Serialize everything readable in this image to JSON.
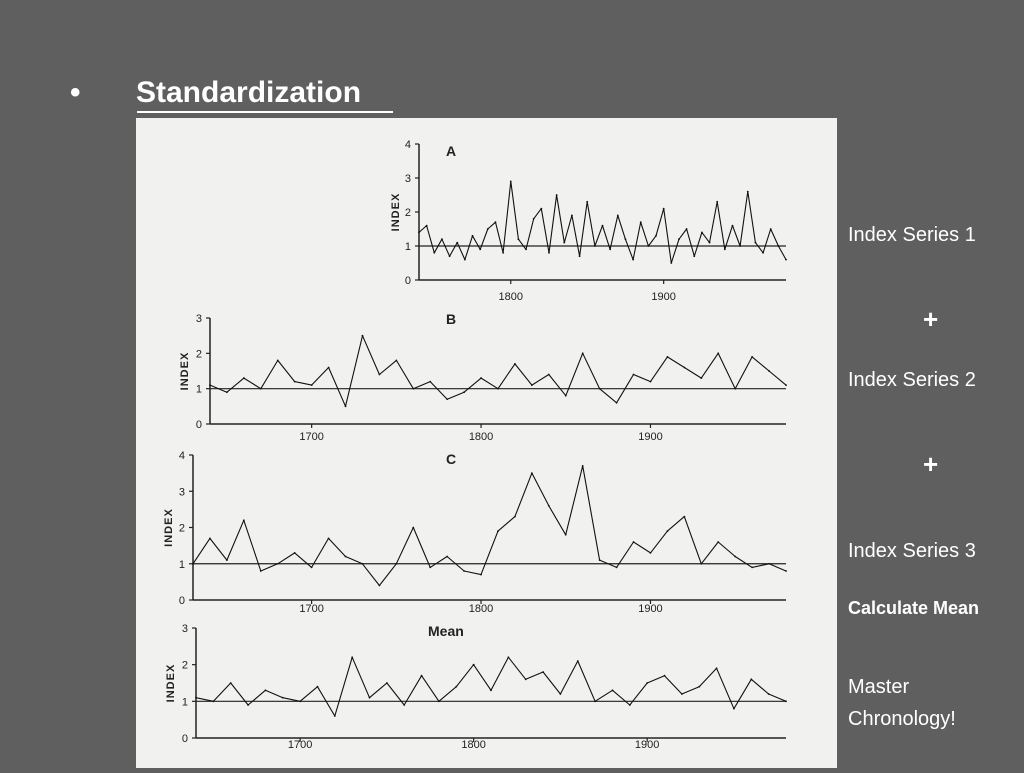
{
  "slide": {
    "bullet": "•",
    "title": "Standardization"
  },
  "side": {
    "series1": "Index Series 1",
    "plus1": "+",
    "series2": "Index Series 2",
    "plus2": "+",
    "series3": "Index Series 3",
    "calculate": "Calculate Mean",
    "master_line1": "Master",
    "master_line2": "Chronology!"
  },
  "chart_data": [
    {
      "type": "line",
      "title": "A",
      "ylabel": "INDEX",
      "xlim": [
        1740,
        1980
      ],
      "ylim": [
        0,
        4
      ],
      "yticks": [
        0,
        1,
        2,
        3,
        4
      ],
      "xticks": [
        1800,
        1900
      ],
      "reference_line": 1,
      "x": [
        1740,
        1745,
        1750,
        1755,
        1760,
        1765,
        1770,
        1775,
        1780,
        1785,
        1790,
        1795,
        1800,
        1805,
        1810,
        1815,
        1820,
        1825,
        1830,
        1835,
        1840,
        1845,
        1850,
        1855,
        1860,
        1865,
        1870,
        1875,
        1880,
        1885,
        1890,
        1895,
        1900,
        1905,
        1910,
        1915,
        1920,
        1925,
        1930,
        1935,
        1940,
        1945,
        1950,
        1955,
        1960,
        1965,
        1970,
        1975,
        1980
      ],
      "values": [
        1.4,
        1.6,
        0.8,
        1.2,
        0.7,
        1.1,
        0.6,
        1.3,
        0.9,
        1.5,
        1.7,
        0.8,
        2.9,
        1.2,
        0.9,
        1.8,
        2.1,
        0.8,
        2.5,
        1.1,
        1.9,
        0.7,
        2.3,
        1.0,
        1.6,
        0.9,
        1.9,
        1.2,
        0.6,
        1.7,
        1.0,
        1.3,
        2.1,
        0.5,
        1.2,
        1.5,
        0.7,
        1.4,
        1.1,
        2.3,
        0.9,
        1.6,
        1.0,
        2.6,
        1.1,
        0.8,
        1.5,
        1.0,
        0.6
      ]
    },
    {
      "type": "line",
      "title": "B",
      "ylabel": "INDEX",
      "xlim": [
        1640,
        1980
      ],
      "ylim": [
        0,
        3
      ],
      "yticks": [
        0,
        1,
        2,
        3
      ],
      "xticks": [
        1700,
        1800,
        1900
      ],
      "reference_line": 1,
      "x": [
        1640,
        1650,
        1660,
        1670,
        1680,
        1690,
        1700,
        1710,
        1720,
        1730,
        1740,
        1750,
        1760,
        1770,
        1780,
        1790,
        1800,
        1810,
        1820,
        1830,
        1840,
        1850,
        1860,
        1870,
        1880,
        1890,
        1900,
        1910,
        1920,
        1930,
        1940,
        1950,
        1960,
        1970,
        1980
      ],
      "values": [
        1.1,
        0.9,
        1.3,
        1.0,
        1.8,
        1.2,
        1.1,
        1.6,
        0.5,
        2.5,
        1.4,
        1.8,
        1.0,
        1.2,
        0.7,
        0.9,
        1.3,
        1.0,
        1.7,
        1.1,
        1.4,
        0.8,
        2.0,
        1.0,
        0.6,
        1.4,
        1.2,
        1.9,
        1.6,
        1.3,
        2.0,
        1.0,
        1.9,
        1.5,
        1.1
      ]
    },
    {
      "type": "line",
      "title": "C",
      "ylabel": "INDEX",
      "xlim": [
        1630,
        1980
      ],
      "ylim": [
        0,
        4
      ],
      "yticks": [
        0,
        1,
        2,
        3,
        4
      ],
      "xticks": [
        1700,
        1800,
        1900
      ],
      "reference_line": 1,
      "x": [
        1630,
        1640,
        1650,
        1660,
        1670,
        1680,
        1690,
        1700,
        1710,
        1720,
        1730,
        1740,
        1750,
        1760,
        1770,
        1780,
        1790,
        1800,
        1810,
        1820,
        1830,
        1840,
        1850,
        1860,
        1870,
        1880,
        1890,
        1900,
        1910,
        1920,
        1930,
        1940,
        1950,
        1960,
        1970,
        1980
      ],
      "values": [
        1.0,
        1.7,
        1.1,
        2.2,
        0.8,
        1.0,
        1.3,
        0.9,
        1.7,
        1.2,
        1.0,
        0.4,
        1.0,
        2.0,
        0.9,
        1.2,
        0.8,
        0.7,
        1.9,
        2.3,
        3.5,
        2.6,
        1.8,
        3.7,
        1.1,
        0.9,
        1.6,
        1.3,
        1.9,
        2.3,
        1.0,
        1.6,
        1.2,
        0.9,
        1.0,
        0.8
      ]
    },
    {
      "type": "line",
      "title": "Mean",
      "ylabel": "INDEX",
      "xlim": [
        1640,
        1980
      ],
      "ylim": [
        0,
        3
      ],
      "yticks": [
        0,
        1,
        2,
        3
      ],
      "xticks": [
        1700,
        1800,
        1900
      ],
      "reference_line": 1,
      "x": [
        1640,
        1650,
        1660,
        1670,
        1680,
        1690,
        1700,
        1710,
        1720,
        1730,
        1740,
        1750,
        1760,
        1770,
        1780,
        1790,
        1800,
        1810,
        1820,
        1830,
        1840,
        1850,
        1860,
        1870,
        1880,
        1890,
        1900,
        1910,
        1920,
        1930,
        1940,
        1950,
        1960,
        1970,
        1980
      ],
      "values": [
        1.1,
        1.0,
        1.5,
        0.9,
        1.3,
        1.1,
        1.0,
        1.4,
        0.6,
        2.2,
        1.1,
        1.5,
        0.9,
        1.7,
        1.0,
        1.4,
        2.0,
        1.3,
        2.2,
        1.6,
        1.8,
        1.2,
        2.1,
        1.0,
        1.3,
        0.9,
        1.5,
        1.7,
        1.2,
        1.4,
        1.9,
        0.8,
        1.6,
        1.2,
        1.0
      ]
    }
  ]
}
